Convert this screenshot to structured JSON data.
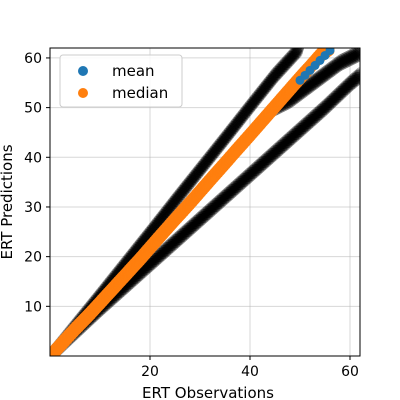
{
  "chart_data": {
    "type": "scatter",
    "title": "",
    "xlabel": "ERT Observations",
    "ylabel": "ERT Predictions",
    "xlim": [
      0,
      62
    ],
    "ylim": [
      0,
      62
    ],
    "xticks": [
      20,
      40,
      60
    ],
    "yticks": [
      10,
      20,
      30,
      40,
      50,
      60
    ],
    "grid": true,
    "legend_position": "top-left",
    "series": [
      {
        "name": "mean",
        "color": "#1f77b4",
        "marker": "circle",
        "x": [
          50,
          51,
          52,
          53,
          54,
          55,
          56
        ],
        "y": [
          55.5,
          56.5,
          57.5,
          58.5,
          59.5,
          60.5,
          61.5
        ]
      },
      {
        "name": "median",
        "color": "#ff7f0e",
        "marker": "circle",
        "x": [
          1,
          3,
          5,
          8,
          10,
          12,
          15,
          18,
          20,
          22,
          25,
          28,
          30,
          32,
          35,
          37,
          40,
          42,
          44,
          46,
          48,
          50,
          52,
          54,
          56
        ],
        "y": [
          1,
          3.2,
          5.4,
          8.5,
          10.7,
          12.9,
          16.2,
          19.5,
          21.8,
          24.1,
          27.5,
          30.8,
          33.1,
          35.4,
          38.8,
          41.1,
          44.5,
          46.8,
          49.1,
          51.4,
          53.7,
          56,
          58.2,
          60.5,
          62
        ]
      },
      {
        "name": "",
        "color": "#000000",
        "marker": "circle",
        "alpha": 0.18,
        "band_upper": {
          "x": [
            1,
            5,
            10,
            15,
            20,
            25,
            30,
            35,
            40,
            45,
            50
          ],
          "y": [
            1,
            6,
            12.2,
            18.5,
            24.8,
            31.2,
            37.5,
            43.8,
            50.2,
            56.5,
            62
          ]
        },
        "band_lower": {
          "x": [
            1,
            5,
            10,
            15,
            20,
            25,
            30,
            35,
            40,
            45,
            50,
            55,
            60,
            62
          ],
          "y": [
            1,
            4.8,
            9.5,
            14,
            18.5,
            23,
            27.5,
            32,
            36.5,
            41,
            45.5,
            50,
            54.8,
            56.5
          ]
        },
        "band_edge": {
          "x": [
            45,
            48,
            50,
            52,
            54,
            56,
            58,
            60,
            62
          ],
          "y": [
            50,
            51.5,
            53,
            54.5,
            56,
            57.5,
            59,
            60,
            61
          ]
        }
      }
    ]
  }
}
